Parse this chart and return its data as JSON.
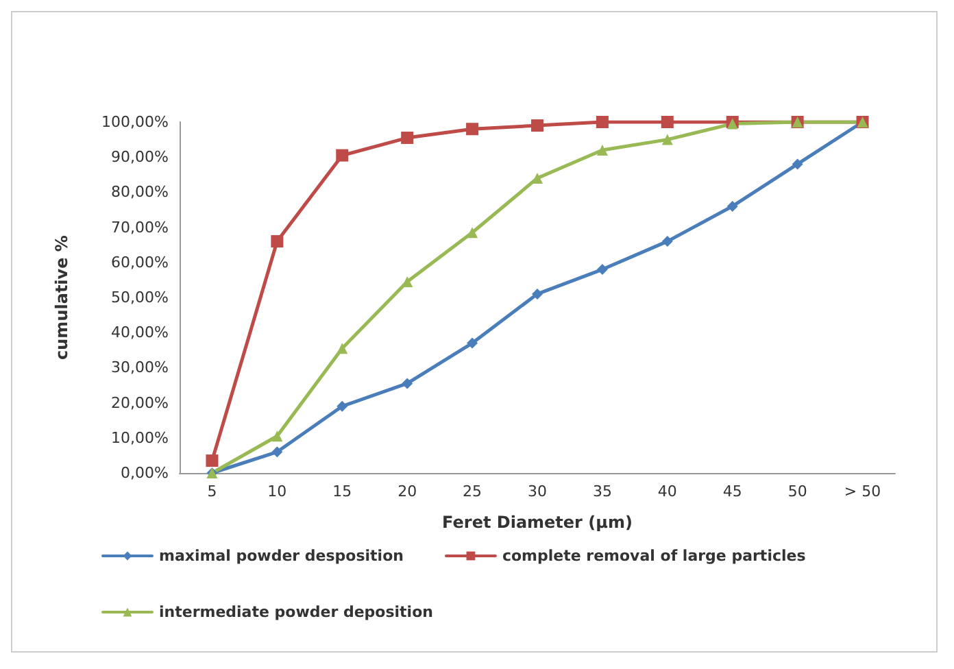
{
  "chart_data": {
    "type": "line",
    "xlabel": "Feret Diameter (µm)",
    "ylabel": "cumulative %",
    "categories": [
      "5",
      "10",
      "15",
      "20",
      "25",
      "30",
      "35",
      "40",
      "45",
      "50",
      "> 50"
    ],
    "series": [
      {
        "name": "maximal powder desposition",
        "color": "#4a7ebb",
        "marker": "diamond",
        "values": [
          0,
          6,
          19,
          25.5,
          37,
          51,
          58,
          66,
          76,
          88,
          100
        ]
      },
      {
        "name": "complete removal of large particles",
        "color": "#be4b48",
        "marker": "square",
        "values": [
          3.5,
          66,
          90.5,
          95.5,
          98,
          99,
          100,
          100,
          100,
          100,
          100
        ]
      },
      {
        "name": "intermediate powder deposition",
        "color": "#98b954",
        "marker": "triangle",
        "values": [
          0,
          10.5,
          35.5,
          54.5,
          68.5,
          84,
          92,
          95,
          99.5,
          100,
          100
        ]
      }
    ],
    "ylim": [
      0,
      100
    ],
    "yticks": [
      {
        "value": 0,
        "label": "0,00%"
      },
      {
        "value": 10,
        "label": "10,00%"
      },
      {
        "value": 20,
        "label": "20,00%"
      },
      {
        "value": 30,
        "label": "30,00%"
      },
      {
        "value": 40,
        "label": "40,00%"
      },
      {
        "value": 50,
        "label": "50,00%"
      },
      {
        "value": 60,
        "label": "60,00%"
      },
      {
        "value": 70,
        "label": "70,00%"
      },
      {
        "value": 80,
        "label": "80,00%"
      },
      {
        "value": 90,
        "label": "90,00%"
      },
      {
        "value": 100,
        "label": "100,00%"
      }
    ],
    "grid": false,
    "legend": "bottom",
    "line_style": "solid"
  }
}
